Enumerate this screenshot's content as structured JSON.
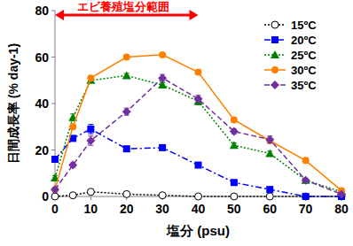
{
  "chart_data": {
    "type": "line",
    "x_label": "塩分 (psu)",
    "y_label": "日間成長率 (% day-1)",
    "annotations": [
      {
        "text": "エビ養殖塩分範囲",
        "x_range": [
          0,
          40
        ],
        "color": "#ff0000"
      }
    ],
    "x": [
      0,
      5,
      10,
      20,
      30,
      40,
      50,
      60,
      70,
      80
    ],
    "xlim": [
      0,
      80
    ],
    "xticks": [
      0,
      10,
      20,
      30,
      40,
      50,
      60,
      70,
      80
    ],
    "ylim": [
      0,
      80
    ],
    "yticks": [
      0,
      20,
      40,
      60,
      80
    ],
    "grid": false,
    "legend": "top-right",
    "series": [
      {
        "name": "15ºC",
        "color": "#000000",
        "marker": "circle-open",
        "line_style": "dotted",
        "values": [
          0,
          0.5,
          2,
          1,
          0.5,
          0,
          0,
          0,
          0,
          0
        ],
        "errors": [
          0.3,
          0.3,
          0.5,
          0.3,
          0.3,
          0.2,
          0.2,
          0.2,
          0.2,
          0.2
        ]
      },
      {
        "name": "20ºC",
        "color": "#0000ff",
        "marker": "square",
        "line_style": "dashdot",
        "values": [
          16,
          25,
          29,
          20.5,
          21,
          13.5,
          6,
          3,
          0,
          0
        ],
        "errors": [
          1,
          1,
          2,
          1,
          1,
          1,
          0.5,
          0.5,
          0.3,
          0.3
        ]
      },
      {
        "name": "25ºC",
        "color": "#008000",
        "marker": "triangle",
        "line_style": "dotted",
        "values": [
          8,
          34,
          50,
          52,
          48,
          41,
          22,
          18.5,
          7,
          2
        ],
        "errors": [
          1,
          1.5,
          1,
          1,
          1,
          1.5,
          1,
          1,
          0.5,
          0.5
        ]
      },
      {
        "name": "30ºC",
        "color": "#ff8000",
        "marker": "circle",
        "line_style": "solid",
        "values": [
          3,
          30,
          51,
          60,
          61,
          53.5,
          33,
          24,
          15.5,
          2.5
        ],
        "errors": [
          0.5,
          1,
          1,
          1,
          0.5,
          1,
          1,
          1,
          1,
          0.5
        ]
      },
      {
        "name": "35ºC",
        "color": "#7030a0",
        "marker": "diamond",
        "line_style": "dashed",
        "values": [
          3,
          13.5,
          24,
          36.5,
          51,
          42,
          28,
          24.5,
          7,
          1
        ],
        "errors": [
          0.5,
          1,
          2,
          1.5,
          1.5,
          1.5,
          1,
          1.5,
          0.5,
          0.5
        ]
      }
    ]
  }
}
